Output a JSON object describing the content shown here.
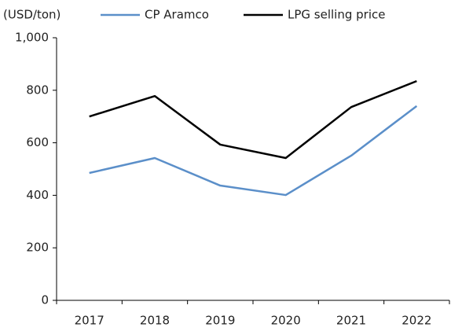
{
  "chart_data": {
    "type": "line",
    "y_label": "(USD/ton)",
    "categories": [
      "2017",
      "2018",
      "2019",
      "2020",
      "2021",
      "2022"
    ],
    "series": [
      {
        "name": "CP Aramco",
        "color": "#5b8fc9",
        "values": [
          485,
          542,
          437,
          401,
          551,
          740
        ]
      },
      {
        "name": "LPG selling price",
        "color": "#000000",
        "values": [
          700,
          778,
          593,
          542,
          736,
          835
        ]
      }
    ],
    "ylim": [
      0,
      1000
    ],
    "yticks": [
      0,
      200,
      400,
      600,
      800,
      {
        "value": 1000,
        "label": "1,000"
      }
    ],
    "grid": false
  }
}
